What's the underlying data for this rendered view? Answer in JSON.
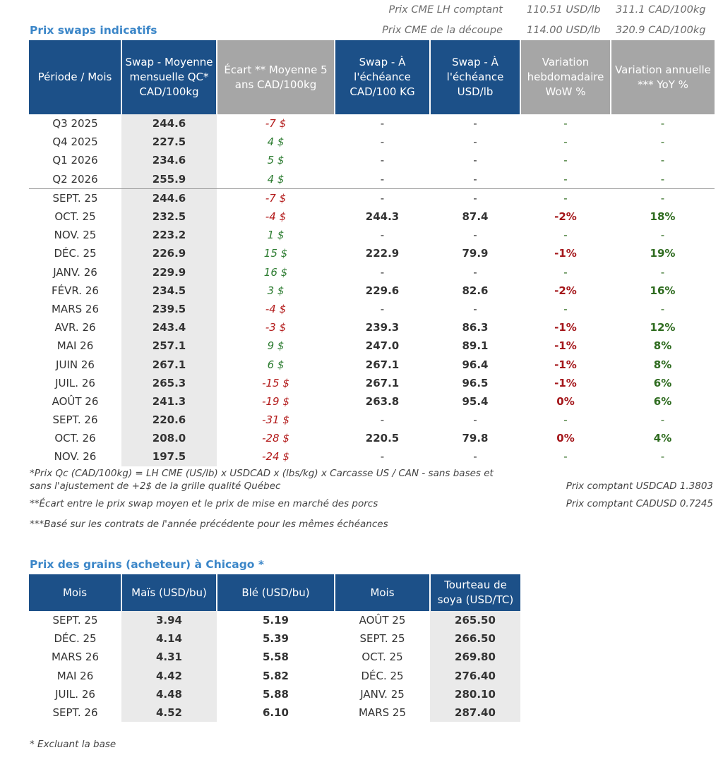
{
  "cme_prices": [
    {
      "label": "Prix CME LH comptant",
      "usd": "110.51 USD/lb",
      "cad": "311.1 CAD/100kg"
    },
    {
      "label": "Prix CME de la découpe",
      "usd": "114.00 USD/lb",
      "cad": "320.9 CAD/100kg"
    }
  ],
  "swaps": {
    "title": "Prix swaps indicatifs",
    "headers": [
      "Période / Mois",
      "Swap - Moyenne mensuelle QC* CAD/100kg",
      "Écart ** Moyenne 5 ans CAD/100kg",
      "Swap - À l'échéance CAD/100 KG",
      "Swap - À l'échéance USD/lb",
      "Variation hebdomadaire WoW %",
      "Variation annuelle *** YoY %"
    ],
    "quarter_rows": [
      {
        "period": "Q3 2025",
        "swap": "244.6",
        "ecart": "-7 $",
        "cad": "-",
        "usd": "-",
        "wow": "-",
        "yoy": "-"
      },
      {
        "period": "Q4 2025",
        "swap": "227.5",
        "ecart": "4 $",
        "cad": "-",
        "usd": "-",
        "wow": "-",
        "yoy": "-"
      },
      {
        "period": "Q1 2026",
        "swap": "234.6",
        "ecart": "5 $",
        "cad": "-",
        "usd": "-",
        "wow": "-",
        "yoy": "-"
      },
      {
        "period": "Q2 2026",
        "swap": "255.9",
        "ecart": "4 $",
        "cad": "-",
        "usd": "-",
        "wow": "-",
        "yoy": "-"
      }
    ],
    "month_rows": [
      {
        "period": "SEPT. 25",
        "swap": "244.6",
        "ecart": "-7 $",
        "cad": "-",
        "usd": "-",
        "wow": "-",
        "yoy": "-"
      },
      {
        "period": "OCT. 25",
        "swap": "232.5",
        "ecart": "-4 $",
        "cad": "244.3",
        "usd": "87.4",
        "wow": "-2%",
        "yoy": "18%"
      },
      {
        "period": "NOV. 25",
        "swap": "223.2",
        "ecart": "1 $",
        "cad": "-",
        "usd": "-",
        "wow": "-",
        "yoy": "-"
      },
      {
        "period": "DÉC. 25",
        "swap": "226.9",
        "ecart": "15 $",
        "cad": "222.9",
        "usd": "79.9",
        "wow": "-1%",
        "yoy": "19%"
      },
      {
        "period": "JANV. 26",
        "swap": "229.9",
        "ecart": "16 $",
        "cad": "-",
        "usd": "-",
        "wow": "-",
        "yoy": "-"
      },
      {
        "period": "FÉVR. 26",
        "swap": "234.5",
        "ecart": "3 $",
        "cad": "229.6",
        "usd": "82.6",
        "wow": "-2%",
        "yoy": "16%"
      },
      {
        "period": "MARS 26",
        "swap": "239.5",
        "ecart": "-4 $",
        "cad": "-",
        "usd": "-",
        "wow": "-",
        "yoy": "-"
      },
      {
        "period": "AVR. 26",
        "swap": "243.4",
        "ecart": "-3 $",
        "cad": "239.3",
        "usd": "86.3",
        "wow": "-1%",
        "yoy": "12%"
      },
      {
        "period": "MAI 26",
        "swap": "257.1",
        "ecart": "9 $",
        "cad": "247.0",
        "usd": "89.1",
        "wow": "-1%",
        "yoy": "8%"
      },
      {
        "period": "JUIN 26",
        "swap": "267.1",
        "ecart": "6 $",
        "cad": "267.1",
        "usd": "96.4",
        "wow": "-1%",
        "yoy": "8%"
      },
      {
        "period": "JUIL. 26",
        "swap": "265.3",
        "ecart": "-15 $",
        "cad": "267.1",
        "usd": "96.5",
        "wow": "-1%",
        "yoy": "6%"
      },
      {
        "period": "AOÛT 26",
        "swap": "241.3",
        "ecart": "-19 $",
        "cad": "263.8",
        "usd": "95.4",
        "wow": "0%",
        "yoy": "6%"
      },
      {
        "period": "SEPT. 26",
        "swap": "220.6",
        "ecart": "-31 $",
        "cad": "-",
        "usd": "-",
        "wow": "-",
        "yoy": "-"
      },
      {
        "period": "OCT. 26",
        "swap": "208.0",
        "ecart": "-28 $",
        "cad": "220.5",
        "usd": "79.8",
        "wow": "0%",
        "yoy": "4%"
      },
      {
        "period": "NOV. 26",
        "swap": "197.5",
        "ecart": "-24 $",
        "cad": "-",
        "usd": "-",
        "wow": "-",
        "yoy": "-"
      }
    ]
  },
  "notes": {
    "n1_line1": "*Prix Qc (CAD/100kg) = LH CME (US/lb) x USDCAD x (lbs/kg) x Carcasse US / CAN - sans bases et",
    "n1_line2": "sans l'ajustement de +2$ de la grille qualité Québec",
    "n2": "**Écart entre le prix swap moyen et le prix de mise en marché des porcs",
    "n3": "***Basé sur les contrats de l'année précédente pour les mêmes échéances",
    "usdcad": "Prix comptant USDCAD 1.3803",
    "cadusd": "Prix comptant CADUSD 0.7245"
  },
  "grains": {
    "title": "Prix des grains (acheteur) à Chicago *",
    "headers": [
      "Mois",
      "Maïs (USD/bu)",
      "Blé (USD/bu)",
      "Mois",
      "Tourteau de soya (USD/TC)"
    ],
    "rows": [
      {
        "mois": "SEPT. 25",
        "mais": "3.94",
        "ble": "5.19",
        "mois2": "AOÛT 25",
        "soya": "265.50"
      },
      {
        "mois": "DÉC. 25",
        "mais": "4.14",
        "ble": "5.39",
        "mois2": "SEPT. 25",
        "soya": "266.50"
      },
      {
        "mois": "MARS 26",
        "mais": "4.31",
        "ble": "5.58",
        "mois2": "OCT. 25",
        "soya": "269.80"
      },
      {
        "mois": "MAI 26",
        "mais": "4.42",
        "ble": "5.82",
        "mois2": "DÉC. 25",
        "soya": "276.40"
      },
      {
        "mois": "JUIL. 26",
        "mais": "4.48",
        "ble": "5.88",
        "mois2": "JANV. 25",
        "soya": "280.10"
      },
      {
        "mois": "SEPT. 26",
        "mais": "4.52",
        "ble": "6.10",
        "mois2": "MARS 25",
        "soya": "287.40"
      }
    ],
    "footnote": "* Excluant la base"
  }
}
